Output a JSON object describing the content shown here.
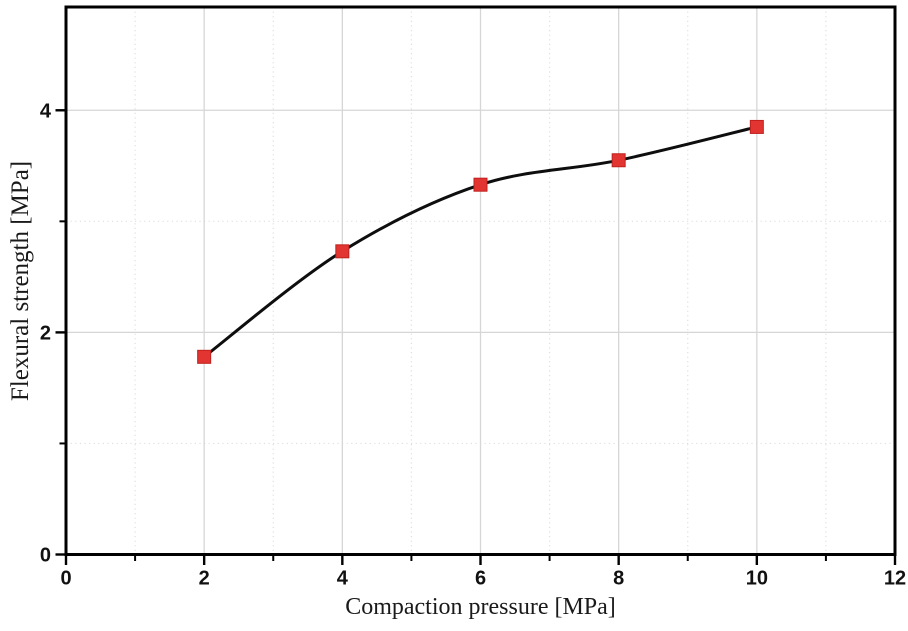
{
  "chart_data": {
    "type": "line",
    "title": "",
    "xlabel": "Compaction pressure [MPa]",
    "ylabel": "Flexural strength [MPa]",
    "series": [
      {
        "name": "Flexural strength",
        "x": [
          2,
          4,
          6,
          8,
          10
        ],
        "y": [
          1.78,
          2.73,
          3.33,
          3.55,
          3.85
        ]
      }
    ],
    "xlim": [
      0,
      12
    ],
    "ylim": [
      0,
      4.93
    ],
    "x_major_ticks": [
      0,
      2,
      4,
      6,
      8,
      10,
      12
    ],
    "x_minor_ticks": [
      1,
      3,
      5,
      7,
      9,
      11
    ],
    "y_major_ticks": [
      0,
      2,
      4
    ],
    "y_minor_ticks": [
      1,
      3
    ],
    "x_major_tick_labels": [
      "0",
      "2",
      "4",
      "6",
      "8",
      "10",
      "12"
    ],
    "y_major_tick_labels": [
      "0",
      "2",
      "4"
    ],
    "grid": {
      "major": "solid",
      "minor": "dotted",
      "visible": true
    },
    "legend": "none",
    "smooth_line": true,
    "style": {
      "line_color": "#0e0e0e",
      "line_width": 3,
      "marker_shape": "square",
      "marker_color": "#e23430",
      "marker_edge_color": "#bf221e",
      "marker_size": 13,
      "major_grid_color": "#d6d6d6",
      "minor_grid_color": "#dfdfdf",
      "axis_color": "#000000",
      "background": "#ffffff"
    }
  }
}
